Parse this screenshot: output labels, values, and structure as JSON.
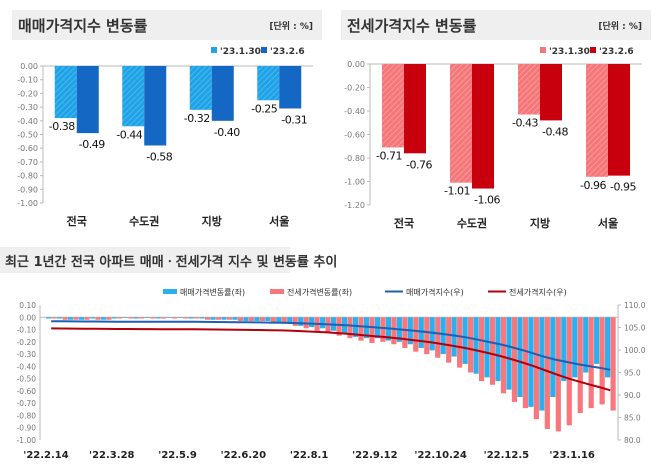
{
  "chart_data": [
    {
      "type": "bar",
      "title": "매매가격지수 변동률",
      "unit": "[단위 : %]",
      "categories": [
        "전국",
        "수도권",
        "지방",
        "서울"
      ],
      "series": [
        {
          "name": "'23.1.30",
          "values": [
            -0.38,
            -0.44,
            -0.32,
            -0.25
          ],
          "color": "#1fa3e6"
        },
        {
          "name": "'23.2.6",
          "values": [
            -0.49,
            -0.58,
            -0.4,
            -0.31
          ],
          "color": "#1467c2"
        }
      ],
      "ylim": [
        -1.0,
        0.0
      ],
      "yticks": [
        "0.00",
        "-0.10",
        "-0.20",
        "-0.30",
        "-0.40",
        "-0.50",
        "-0.60",
        "-0.70",
        "-0.80",
        "-0.90",
        "-1.00"
      ],
      "legend": "top-right"
    },
    {
      "type": "bar",
      "title": "전세가격지수 변동률",
      "unit": "[단위 : %]",
      "categories": [
        "전국",
        "수도권",
        "지방",
        "서울"
      ],
      "series": [
        {
          "name": "'23.1.30",
          "values": [
            -0.71,
            -1.01,
            -0.43,
            -0.96
          ],
          "color": "#f4777a"
        },
        {
          "name": "'23.2.6",
          "values": [
            -0.76,
            -1.06,
            -0.48,
            -0.95
          ],
          "color": "#c8000e"
        }
      ],
      "ylim": [
        -1.2,
        0.0
      ],
      "yticks": [
        "0.00",
        "-0.20",
        "-0.40",
        "-0.60",
        "-0.80",
        "-1.00",
        "-1.20"
      ],
      "legend": "top-right"
    },
    {
      "type": "bar+line",
      "title": "최근 1년간 전국 아파트 매매ㆍ전세가격 지수 및 변동률 추이",
      "x_labels": [
        "'22.2.14",
        "'22.3.28",
        "'22.5.9",
        "'22.6.20",
        "'22.8.1",
        "'22.9.12",
        "'22.10.24",
        "'22.12.5",
        "'23.1.16"
      ],
      "weeks": 52,
      "ylim_left": [
        -1.0,
        0.1
      ],
      "yticks_left": [
        "0.10",
        "0.00",
        "-0.10",
        "-0.20",
        "-0.30",
        "-0.40",
        "-0.50",
        "-0.60",
        "-0.70",
        "-0.80",
        "-0.90",
        "-1.00"
      ],
      "ylim_right": [
        80,
        110
      ],
      "yticks_right": [
        "110.0",
        "105.0",
        "100.0",
        "95.0",
        "90.0",
        "85.0",
        "80.0"
      ],
      "series": [
        {
          "name": "매매가격변동률(좌)",
          "kind": "bar",
          "axis": "left",
          "color": "#2ab0ef",
          "values": [
            -0.01,
            -0.01,
            -0.02,
            -0.02,
            -0.01,
            -0.02,
            -0.01,
            0.0,
            -0.01,
            0.0,
            -0.01,
            0.0,
            0.0,
            -0.01,
            -0.01,
            -0.02,
            -0.02,
            -0.02,
            -0.03,
            -0.03,
            -0.03,
            -0.04,
            -0.05,
            -0.07,
            -0.08,
            -0.09,
            -0.11,
            -0.14,
            -0.16,
            -0.17,
            -0.17,
            -0.19,
            -0.2,
            -0.22,
            -0.25,
            -0.27,
            -0.3,
            -0.32,
            -0.38,
            -0.46,
            -0.49,
            -0.52,
            -0.59,
            -0.65,
            -0.73,
            -0.76,
            -0.65,
            -0.52,
            -0.49,
            -0.45,
            -0.38,
            -0.49
          ]
        },
        {
          "name": "전세가격변동률(좌)",
          "kind": "bar",
          "axis": "left",
          "color": "#f7777c",
          "values": [
            -0.01,
            -0.02,
            -0.02,
            -0.02,
            -0.02,
            -0.02,
            -0.01,
            -0.01,
            -0.01,
            -0.01,
            -0.01,
            -0.01,
            -0.01,
            -0.01,
            -0.02,
            -0.02,
            -0.02,
            -0.03,
            -0.03,
            -0.03,
            -0.04,
            -0.05,
            -0.07,
            -0.09,
            -0.11,
            -0.13,
            -0.15,
            -0.17,
            -0.19,
            -0.21,
            -0.2,
            -0.22,
            -0.25,
            -0.28,
            -0.3,
            -0.33,
            -0.37,
            -0.41,
            -0.45,
            -0.52,
            -0.55,
            -0.62,
            -0.69,
            -0.74,
            -0.83,
            -0.91,
            -0.93,
            -0.88,
            -0.78,
            -0.74,
            -0.71,
            -0.76
          ]
        },
        {
          "name": "매매가격지수(우)",
          "kind": "line",
          "axis": "right",
          "color": "#1c5fb5",
          "start": 106.4
        },
        {
          "name": "전세가격지수(우)",
          "kind": "line",
          "axis": "right",
          "color": "#b3000c",
          "start": 104.8
        }
      ],
      "legend": "top"
    }
  ]
}
